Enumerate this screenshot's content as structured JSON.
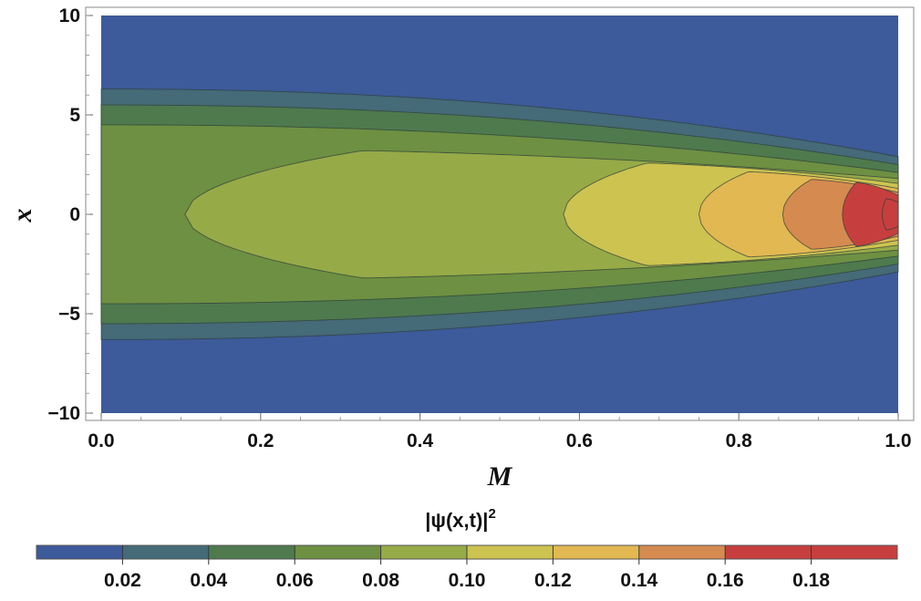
{
  "chart_data": {
    "type": "contour",
    "title": "",
    "xlabel": "M",
    "ylabel": "x",
    "xlim": [
      0,
      1
    ],
    "ylim": [
      -10,
      10
    ],
    "x_ticks": [
      {
        "value": 0.0,
        "label": "0.0"
      },
      {
        "value": 0.2,
        "label": "0.2"
      },
      {
        "value": 0.4,
        "label": "0.4"
      },
      {
        "value": 0.6,
        "label": "0.6"
      },
      {
        "value": 0.8,
        "label": "0.8"
      },
      {
        "value": 1.0,
        "label": "1.0"
      }
    ],
    "y_ticks": [
      {
        "value": 10,
        "label": "10"
      },
      {
        "value": 5,
        "label": "5"
      },
      {
        "value": 0,
        "label": "0"
      },
      {
        "value": -5,
        "label": "−5"
      },
      {
        "value": -10,
        "label": "−10"
      }
    ],
    "legend_title": "|ψ(x,t)|",
    "legend_title_superscript": "2",
    "legend_position": "bottom",
    "contour_levels": [
      0.02,
      0.04,
      0.06,
      0.08,
      0.1,
      0.12,
      0.14,
      0.16,
      0.18
    ],
    "legend_labels": [
      "0.02",
      "0.04",
      "0.06",
      "0.08",
      "0.10",
      "0.12",
      "0.14",
      "0.16",
      "0.18"
    ],
    "legend_range": [
      0,
      0.2
    ],
    "band_colors": [
      "#3d5a9a",
      "#456a78",
      "#4e7a4e",
      "#6d9042",
      "#96aa48",
      "#cdc350",
      "#e2b852",
      "#d58a50",
      "#c63f3e",
      "#c63f3e"
    ],
    "contour_boundaries": [
      {
        "level": 0.02,
        "x_left": 6.3,
        "x_right": 2.9,
        "min_M": 0.0
      },
      {
        "level": 0.04,
        "x_left": 5.5,
        "x_right": 2.5,
        "min_M": 0.0
      },
      {
        "level": 0.06,
        "x_left": 4.5,
        "x_right": 2.1,
        "min_M": 0.0
      },
      {
        "level": 0.08,
        "x_left": 3.3,
        "x_right": 1.8,
        "min_M": 0.105
      },
      {
        "level": 0.1,
        "x_left": 2.65,
        "x_right": 1.55,
        "min_M": 0.58
      },
      {
        "level": 0.12,
        "x_left": 2.2,
        "x_right": 1.3,
        "min_M": 0.75
      },
      {
        "level": 0.14,
        "x_left": 1.8,
        "x_right": 1.1,
        "min_M": 0.855
      },
      {
        "level": 0.16,
        "x_left": 1.65,
        "x_right": 0.95,
        "min_M": 0.93
      },
      {
        "level": 0.18,
        "x_left": 0.8,
        "x_right": 0.6,
        "min_M": 0.98
      }
    ]
  }
}
